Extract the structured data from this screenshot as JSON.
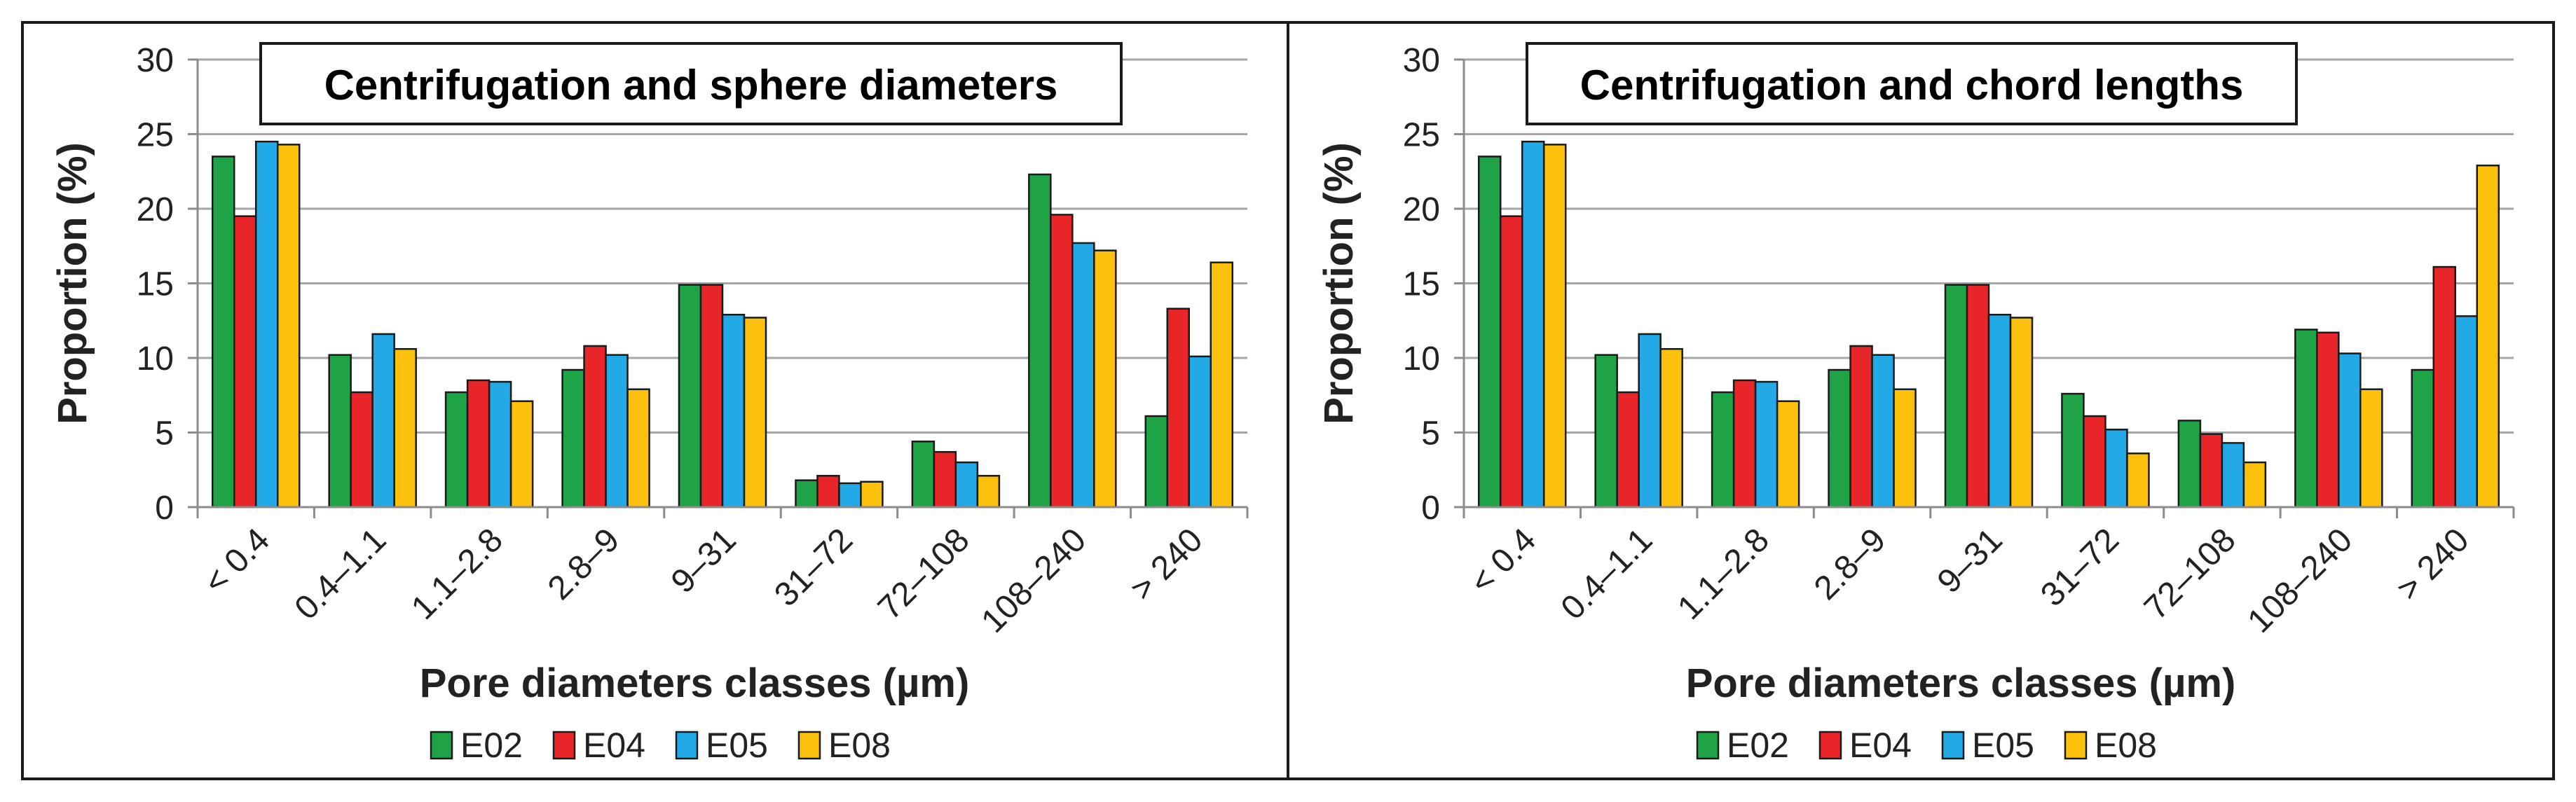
{
  "colors": {
    "E02": "#1fa347",
    "E04": "#e8262a",
    "E05": "#23a9e6",
    "E08": "#fcc10d",
    "bar_edge": "#1a1a1a"
  },
  "chart_data": [
    {
      "type": "bar",
      "title": "Centrifugation and sphere diameters",
      "xlabel": "Pore diameters classes (µm)",
      "ylabel": "Proportion (%)",
      "ylim": [
        0,
        30
      ],
      "yticks": [
        0,
        5,
        10,
        15,
        20,
        25,
        30
      ],
      "categories": [
        "< 0.4",
        "0.4–1.1",
        "1.1–2.8",
        "2.8–9",
        "9–31",
        "31–72",
        "72–108",
        "108–240",
        "> 240"
      ],
      "series": [
        {
          "name": "E02",
          "values": [
            23.5,
            10.2,
            7.7,
            9.2,
            14.9,
            1.8,
            4.4,
            22.3,
            6.1
          ]
        },
        {
          "name": "E04",
          "values": [
            19.5,
            7.7,
            8.5,
            10.8,
            14.9,
            2.1,
            3.7,
            19.6,
            13.3
          ]
        },
        {
          "name": "E05",
          "values": [
            24.5,
            11.6,
            8.4,
            10.2,
            12.9,
            1.6,
            3.0,
            17.7,
            10.1
          ]
        },
        {
          "name": "E08",
          "values": [
            24.3,
            10.6,
            7.1,
            7.9,
            12.7,
            1.7,
            2.1,
            17.2,
            16.4
          ]
        }
      ],
      "legend_position": "bottom"
    },
    {
      "type": "bar",
      "title": "Centrifugation and chord lengths",
      "xlabel": "Pore diameters classes (µm)",
      "ylabel": "Proportion (%)",
      "ylim": [
        0,
        30
      ],
      "yticks": [
        0,
        5,
        10,
        15,
        20,
        25,
        30
      ],
      "categories": [
        "< 0.4",
        "0.4–1.1",
        "1.1–2.8",
        "2.8–9",
        "9–31",
        "31–72",
        "72–108",
        "108–240",
        "> 240"
      ],
      "series": [
        {
          "name": "E02",
          "values": [
            23.5,
            10.2,
            7.7,
            9.2,
            14.9,
            7.6,
            5.8,
            11.9,
            9.2
          ]
        },
        {
          "name": "E04",
          "values": [
            19.5,
            7.7,
            8.5,
            10.8,
            14.9,
            6.1,
            4.9,
            11.7,
            16.1
          ]
        },
        {
          "name": "E05",
          "values": [
            24.5,
            11.6,
            8.4,
            10.2,
            12.9,
            5.2,
            4.3,
            10.3,
            12.8
          ]
        },
        {
          "name": "E08",
          "values": [
            24.3,
            10.6,
            7.1,
            7.9,
            12.7,
            3.6,
            3.0,
            7.9,
            22.9
          ]
        }
      ],
      "legend_position": "bottom"
    }
  ]
}
